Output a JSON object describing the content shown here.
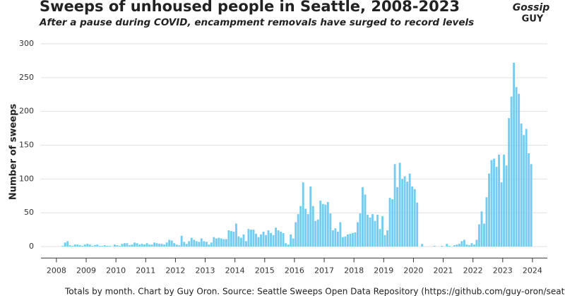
{
  "chart_data": {
    "type": "bar",
    "title": "Sweeps of unhoused people in Seattle, 2008-2023",
    "subtitle": "After a pause during COVID, encampment removals have surged to record levels",
    "y_label": "Number of sweeps",
    "footer": "Totals by month. Chart by Guy Oron. Source: Seattle Sweeps Open Data Repository (https://github.com/guy-oron/seattle-sweeps-data/)",
    "logo": [
      "Gossip",
      "GUY"
    ],
    "color": "#74cdf0",
    "grid": true,
    "xlim": [
      2007.48,
      2024.5
    ],
    "ylim": [
      -17,
      300
    ],
    "xticks": [
      2008,
      2009,
      2010,
      2011,
      2012,
      2013,
      2014,
      2015,
      2016,
      2017,
      2018,
      2019,
      2020,
      2021,
      2022,
      2023,
      2024
    ],
    "yticks": [
      0,
      50,
      100,
      150,
      200,
      250,
      300
    ],
    "x": [
      2008.042,
      2008.125,
      2008.208,
      2008.292,
      2008.375,
      2008.458,
      2008.542,
      2008.625,
      2008.708,
      2008.792,
      2008.875,
      2008.958,
      2009.042,
      2009.125,
      2009.208,
      2009.292,
      2009.375,
      2009.458,
      2009.542,
      2009.625,
      2009.708,
      2009.792,
      2009.875,
      2009.958,
      2010.042,
      2010.125,
      2010.208,
      2010.292,
      2010.375,
      2010.458,
      2010.542,
      2010.625,
      2010.708,
      2010.792,
      2010.875,
      2010.958,
      2011.042,
      2011.125,
      2011.208,
      2011.292,
      2011.375,
      2011.458,
      2011.542,
      2011.625,
      2011.708,
      2011.792,
      2011.875,
      2011.958,
      2012.042,
      2012.125,
      2012.208,
      2012.292,
      2012.375,
      2012.458,
      2012.542,
      2012.625,
      2012.708,
      2012.792,
      2012.875,
      2012.958,
      2013.042,
      2013.125,
      2013.208,
      2013.292,
      2013.375,
      2013.458,
      2013.542,
      2013.625,
      2013.708,
      2013.792,
      2013.875,
      2013.958,
      2014.042,
      2014.125,
      2014.208,
      2014.292,
      2014.375,
      2014.458,
      2014.542,
      2014.625,
      2014.708,
      2014.792,
      2014.875,
      2014.958,
      2015.042,
      2015.125,
      2015.208,
      2015.292,
      2015.375,
      2015.458,
      2015.542,
      2015.625,
      2015.708,
      2015.792,
      2015.875,
      2015.958,
      2016.042,
      2016.125,
      2016.208,
      2016.292,
      2016.375,
      2016.458,
      2016.542,
      2016.625,
      2016.708,
      2016.792,
      2016.875,
      2016.958,
      2017.042,
      2017.125,
      2017.208,
      2017.292,
      2017.375,
      2017.458,
      2017.542,
      2017.625,
      2017.708,
      2017.792,
      2017.875,
      2017.958,
      2018.042,
      2018.125,
      2018.208,
      2018.292,
      2018.375,
      2018.458,
      2018.542,
      2018.625,
      2018.708,
      2018.792,
      2018.875,
      2018.958,
      2019.042,
      2019.125,
      2019.208,
      2019.292,
      2019.375,
      2019.458,
      2019.542,
      2019.625,
      2019.708,
      2019.792,
      2019.875,
      2019.958,
      2020.042,
      2020.125,
      2020.208,
      2020.292,
      2020.375,
      2020.458,
      2020.542,
      2020.625,
      2020.708,
      2020.792,
      2020.875,
      2020.958,
      2021.042,
      2021.125,
      2021.208,
      2021.292,
      2021.375,
      2021.458,
      2021.542,
      2021.625,
      2021.708,
      2021.792,
      2021.875,
      2021.958,
      2022.042,
      2022.125,
      2022.208,
      2022.292,
      2022.375,
      2022.458,
      2022.542,
      2022.625,
      2022.708,
      2022.792,
      2022.875,
      2022.958,
      2023.042,
      2023.125,
      2023.208,
      2023.292,
      2023.375,
      2023.458,
      2023.542,
      2023.625,
      2023.708,
      2023.792,
      2023.875,
      2023.958
    ],
    "values": [
      0,
      0,
      1,
      6,
      8,
      2,
      1,
      3,
      3,
      2,
      1,
      3,
      4,
      3,
      1,
      2,
      3,
      1,
      1,
      2,
      1,
      1,
      0,
      3,
      2,
      1,
      4,
      5,
      5,
      2,
      3,
      6,
      5,
      3,
      4,
      3,
      5,
      3,
      3,
      6,
      5,
      4,
      4,
      3,
      6,
      10,
      9,
      5,
      3,
      2,
      16,
      7,
      4,
      8,
      13,
      10,
      8,
      7,
      12,
      8,
      7,
      3,
      6,
      14,
      12,
      13,
      12,
      11,
      11,
      24,
      23,
      22,
      34,
      15,
      13,
      18,
      8,
      26,
      25,
      25,
      19,
      14,
      18,
      22,
      17,
      24,
      20,
      17,
      28,
      24,
      22,
      20,
      5,
      3,
      18,
      12,
      36,
      48,
      60,
      95,
      56,
      48,
      89,
      60,
      38,
      40,
      68,
      63,
      62,
      66,
      49,
      24,
      27,
      22,
      36,
      14,
      15,
      18,
      19,
      20,
      21,
      36,
      49,
      88,
      77,
      47,
      43,
      48,
      38,
      47,
      26,
      45,
      17,
      24,
      72,
      70,
      122,
      88,
      124,
      100,
      104,
      96,
      108,
      89,
      85,
      65,
      0,
      4,
      0,
      0,
      0,
      0,
      1,
      0,
      0,
      1,
      0,
      4,
      1,
      0,
      2,
      3,
      4,
      8,
      10,
      3,
      2,
      5,
      3,
      10,
      33,
      52,
      34,
      73,
      108,
      128,
      130,
      118,
      136,
      95,
      136,
      120,
      190,
      222,
      272,
      236,
      226,
      182,
      165,
      174,
      138,
      122
    ]
  }
}
